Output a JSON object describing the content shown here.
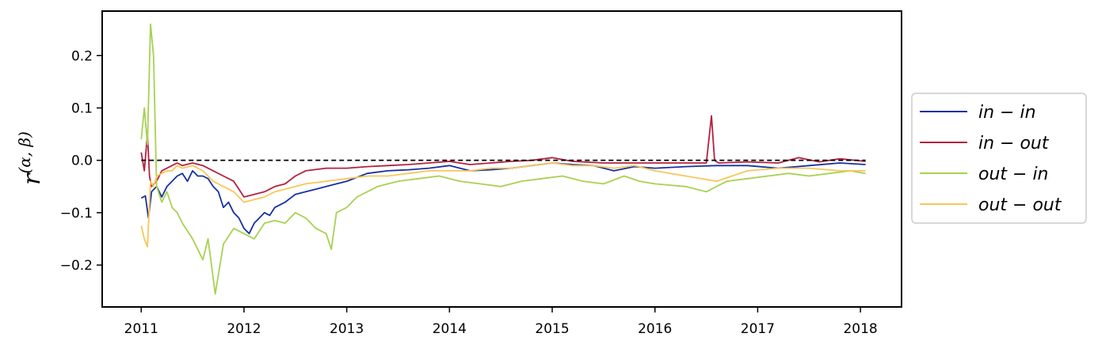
{
  "chart_data": {
    "type": "line",
    "title": "",
    "xlabel": "",
    "ylabel": {
      "base": "r",
      "superscript": "(α, β)"
    },
    "xlim": [
      2010.62,
      2018.4
    ],
    "ylim": [
      -0.28,
      0.285
    ],
    "xticks": [
      2011,
      2012,
      2013,
      2014,
      2015,
      2016,
      2017,
      2018
    ],
    "xtick_labels": [
      "2011",
      "2012",
      "2013",
      "2014",
      "2015",
      "2016",
      "2017",
      "2018"
    ],
    "yticks": [
      -0.2,
      -0.1,
      0.0,
      0.1,
      0.2
    ],
    "ytick_labels": [
      "−0.2",
      "−0.1",
      "0.0",
      "0.1",
      "0.2"
    ],
    "grid": false,
    "legend_position": "outside-right",
    "reference_line": {
      "y": 0.0,
      "style": "dashed",
      "color": "#000000"
    },
    "series": [
      {
        "name": "in − in",
        "color": "#1630a0",
        "x": [
          2011.0,
          2011.04,
          2011.07,
          2011.1,
          2011.15,
          2011.2,
          2011.25,
          2011.3,
          2011.35,
          2011.4,
          2011.45,
          2011.5,
          2011.55,
          2011.6,
          2011.65,
          2011.7,
          2011.75,
          2011.8,
          2011.85,
          2011.9,
          2011.95,
          2012.0,
          2012.05,
          2012.1,
          2012.15,
          2012.2,
          2012.25,
          2012.3,
          2012.35,
          2012.4,
          2012.5,
          2012.6,
          2012.7,
          2012.8,
          2012.9,
          2013.0,
          2013.2,
          2013.4,
          2013.6,
          2013.8,
          2014.0,
          2014.2,
          2014.4,
          2014.6,
          2014.8,
          2015.0,
          2015.2,
          2015.4,
          2015.6,
          2015.8,
          2016.0,
          2016.3,
          2016.6,
          2016.9,
          2017.2,
          2017.5,
          2017.8,
          2018.05
        ],
        "y": [
          -0.072,
          -0.068,
          -0.11,
          -0.06,
          -0.05,
          -0.07,
          -0.05,
          -0.04,
          -0.03,
          -0.025,
          -0.04,
          -0.02,
          -0.03,
          -0.03,
          -0.035,
          -0.05,
          -0.06,
          -0.09,
          -0.08,
          -0.1,
          -0.11,
          -0.13,
          -0.14,
          -0.12,
          -0.11,
          -0.1,
          -0.105,
          -0.09,
          -0.085,
          -0.08,
          -0.065,
          -0.06,
          -0.055,
          -0.05,
          -0.045,
          -0.04,
          -0.025,
          -0.02,
          -0.018,
          -0.015,
          -0.01,
          -0.02,
          -0.018,
          -0.015,
          -0.01,
          -0.005,
          -0.008,
          -0.01,
          -0.02,
          -0.012,
          -0.015,
          -0.012,
          -0.01,
          -0.01,
          -0.015,
          -0.01,
          -0.005,
          -0.008
        ]
      },
      {
        "name": "in − out",
        "color": "#b5213f",
        "x": [
          2011.0,
          2011.03,
          2011.06,
          2011.08,
          2011.1,
          2011.15,
          2011.2,
          2011.25,
          2011.3,
          2011.35,
          2011.4,
          2011.5,
          2011.6,
          2011.7,
          2011.8,
          2011.9,
          2012.0,
          2012.1,
          2012.2,
          2012.3,
          2012.4,
          2012.5,
          2012.6,
          2012.8,
          2013.0,
          2013.2,
          2013.4,
          2013.6,
          2013.8,
          2014.0,
          2014.2,
          2014.4,
          2014.6,
          2014.8,
          2015.0,
          2015.2,
          2015.5,
          2015.8,
          2016.0,
          2016.3,
          2016.5,
          2016.55,
          2016.58,
          2016.62,
          2016.9,
          2017.2,
          2017.4,
          2017.6,
          2017.8,
          2018.05
        ],
        "y": [
          0.015,
          -0.02,
          0.05,
          -0.03,
          -0.05,
          -0.04,
          -0.02,
          -0.015,
          -0.01,
          -0.005,
          -0.01,
          -0.005,
          -0.01,
          -0.02,
          -0.03,
          -0.04,
          -0.07,
          -0.065,
          -0.06,
          -0.05,
          -0.045,
          -0.03,
          -0.02,
          -0.015,
          -0.015,
          -0.012,
          -0.01,
          -0.008,
          -0.005,
          -0.002,
          -0.008,
          -0.005,
          -0.002,
          0.0,
          0.005,
          -0.002,
          -0.005,
          -0.005,
          -0.005,
          -0.005,
          -0.005,
          0.085,
          0.0,
          -0.005,
          -0.003,
          -0.005,
          0.005,
          -0.003,
          0.003,
          -0.002
        ]
      },
      {
        "name": "out − in",
        "color": "#a8d152",
        "x": [
          2011.0,
          2011.03,
          2011.06,
          2011.09,
          2011.12,
          2011.15,
          2011.2,
          2011.25,
          2011.3,
          2011.35,
          2011.4,
          2011.5,
          2011.55,
          2011.6,
          2011.65,
          2011.72,
          2011.8,
          2011.9,
          2012.0,
          2012.1,
          2012.2,
          2012.3,
          2012.4,
          2012.5,
          2012.6,
          2012.7,
          2012.8,
          2012.85,
          2012.9,
          2013.0,
          2013.1,
          2013.2,
          2013.3,
          2013.5,
          2013.7,
          2013.9,
          2014.1,
          2014.3,
          2014.5,
          2014.7,
          2014.9,
          2015.1,
          2015.3,
          2015.5,
          2015.7,
          2015.85,
          2016.0,
          2016.3,
          2016.5,
          2016.7,
          2016.9,
          2017.1,
          2017.3,
          2017.5,
          2017.7,
          2017.9,
          2018.05
        ],
        "y": [
          0.04,
          0.1,
          0.03,
          0.26,
          0.2,
          -0.05,
          -0.08,
          -0.06,
          -0.09,
          -0.1,
          -0.12,
          -0.15,
          -0.17,
          -0.19,
          -0.15,
          -0.255,
          -0.16,
          -0.13,
          -0.14,
          -0.15,
          -0.12,
          -0.115,
          -0.12,
          -0.1,
          -0.11,
          -0.13,
          -0.14,
          -0.17,
          -0.1,
          -0.09,
          -0.07,
          -0.06,
          -0.05,
          -0.04,
          -0.035,
          -0.03,
          -0.04,
          -0.045,
          -0.05,
          -0.04,
          -0.035,
          -0.03,
          -0.04,
          -0.045,
          -0.03,
          -0.04,
          -0.045,
          -0.05,
          -0.06,
          -0.04,
          -0.035,
          -0.03,
          -0.025,
          -0.03,
          -0.025,
          -0.02,
          -0.025
        ]
      },
      {
        "name": "out − out",
        "color": "#f8c65a",
        "x": [
          2011.0,
          2011.03,
          2011.06,
          2011.09,
          2011.12,
          2011.15,
          2011.2,
          2011.25,
          2011.3,
          2011.35,
          2011.4,
          2011.5,
          2011.6,
          2011.7,
          2011.8,
          2011.9,
          2012.0,
          2012.1,
          2012.2,
          2012.3,
          2012.4,
          2012.5,
          2012.6,
          2012.8,
          2013.0,
          2013.2,
          2013.4,
          2013.6,
          2013.8,
          2014.0,
          2014.2,
          2014.4,
          2014.6,
          2014.8,
          2015.0,
          2015.2,
          2015.4,
          2015.6,
          2015.8,
          2016.0,
          2016.3,
          2016.6,
          2016.9,
          2017.2,
          2017.5,
          2017.8,
          2018.05
        ],
        "y": [
          -0.125,
          -0.15,
          -0.165,
          -0.04,
          -0.05,
          -0.03,
          -0.025,
          -0.02,
          -0.02,
          -0.01,
          -0.015,
          -0.01,
          -0.02,
          -0.04,
          -0.05,
          -0.06,
          -0.08,
          -0.075,
          -0.07,
          -0.06,
          -0.055,
          -0.05,
          -0.045,
          -0.04,
          -0.035,
          -0.03,
          -0.03,
          -0.025,
          -0.02,
          -0.02,
          -0.02,
          -0.015,
          -0.015,
          -0.01,
          -0.005,
          -0.01,
          -0.01,
          -0.015,
          -0.01,
          -0.02,
          -0.03,
          -0.04,
          -0.02,
          -0.015,
          -0.015,
          -0.02,
          -0.02
        ]
      }
    ]
  }
}
